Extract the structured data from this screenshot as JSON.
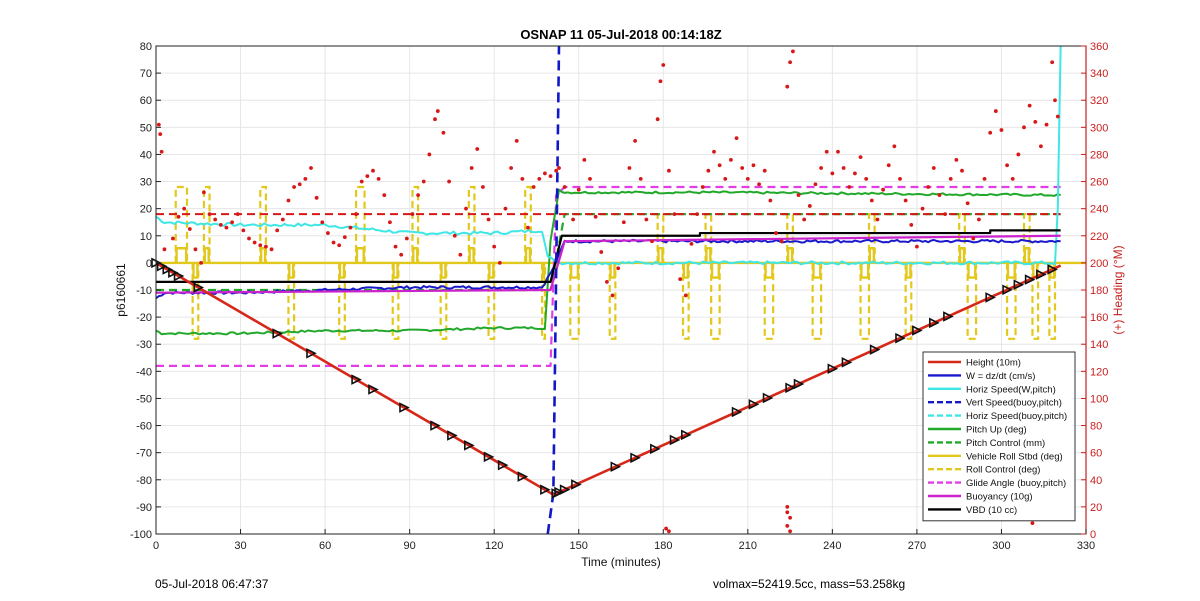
{
  "chart_data": {
    "type": "line",
    "title": "OSNAP 11 05-Jul-2018 00:14:18Z",
    "xlabel": "Time (minutes)",
    "ylabel": "p6160661",
    "y2label": "(+) Heading (°M)",
    "xlim": [
      0,
      330
    ],
    "ylim": [
      -100,
      80
    ],
    "y2lim": [
      0,
      360
    ],
    "x_ticks": [
      "0",
      "30",
      "60",
      "90",
      "120",
      "150",
      "180",
      "210",
      "240",
      "270",
      "300",
      "330"
    ],
    "y_ticks": [
      "80",
      "70",
      "60",
      "50",
      "40",
      "30",
      "20",
      "10",
      "0",
      "-10",
      "-20",
      "-30",
      "-40",
      "-50",
      "-60",
      "-70",
      "-80",
      "-90",
      "-100"
    ],
    "y2_ticks": [
      "360",
      "340",
      "320",
      "300",
      "280",
      "260",
      "240",
      "220",
      "200",
      "180",
      "160",
      "140",
      "120",
      "100",
      "80",
      "60",
      "40",
      "20",
      "0"
    ],
    "grid": true,
    "legend_position": "bottom-right",
    "colors": {
      "height": "#d62718",
      "w": "#1a1acc",
      "horiz_speed": "#3fe6e6",
      "vert_speed": "#1018c8",
      "pitch": "#22a82a",
      "roll": "#e3c81c",
      "glide": "#e23ee6",
      "buoyancy": "#cc22cc",
      "vbd": "#000000",
      "heading": "#d81818",
      "axis_right": "#c81e1e"
    },
    "legend": [
      "Height (10m)",
      "W = dz/dt (cm/s)",
      "Horiz Speed(W,pitch)",
      "Vert Speed(buoy,pitch)",
      "Horiz Speed(buoy,pitch)",
      "Pitch Up (deg)",
      "Pitch Control (mm)",
      "Vehicle Roll Stbd (deg)",
      "Roll Control (deg)",
      "Glide Angle (buoy,pitch)",
      "Buoyancy (10g)",
      "VBD (10 cc)"
    ],
    "series": [
      {
        "name": "Height (10m)",
        "x": [
          0,
          141,
          321
        ],
        "y": [
          0,
          -85.5,
          -1
        ]
      },
      {
        "name": "W = dz/dt (cm/s)",
        "x": [
          0,
          3,
          30,
          60,
          90,
          120,
          137,
          141,
          145,
          170,
          200,
          250,
          300,
          321
        ],
        "y": [
          -13,
          -11,
          -11,
          -10,
          -9,
          -9,
          -9,
          -2,
          8,
          8,
          8,
          8,
          8,
          8
        ]
      },
      {
        "name": "Horiz Speed(W,pitch)",
        "x": [
          0,
          3,
          30,
          60,
          90,
          120,
          137,
          139,
          144,
          200,
          300,
          319,
          320,
          321
        ],
        "y": [
          17,
          15,
          14,
          14,
          11,
          11,
          12,
          2,
          0,
          0,
          0,
          0,
          20,
          80
        ]
      },
      {
        "name": "Vert Speed(buoy,pitch)",
        "x": [
          139,
          141,
          143
        ],
        "y": [
          -100,
          -85,
          80
        ]
      },
      {
        "name": "Horiz Speed(buoy,pitch)",
        "x": [],
        "y": []
      },
      {
        "name": "Pitch Up (deg)",
        "x": [
          0,
          2,
          30,
          60,
          90,
          120,
          138,
          140,
          143,
          145,
          200,
          320,
          321
        ],
        "y": [
          -25,
          -26,
          -26,
          -25,
          -25,
          -24,
          -24,
          8,
          27,
          26,
          26,
          25,
          25
        ]
      },
      {
        "name": "Pitch Control (mm)",
        "x": [
          0,
          140,
          145,
          321
        ],
        "y": [
          -10,
          -10,
          18,
          18
        ]
      },
      {
        "name": "Vehicle Roll Stbd (deg)",
        "x": [
          0,
          330
        ],
        "y": [
          0,
          0
        ]
      },
      {
        "name": "Roll Control (deg)",
        "x": [],
        "y": []
      },
      {
        "name": "Glide Angle (buoy,pitch)",
        "x": [
          0,
          140,
          142,
          145,
          321
        ],
        "y": [
          -38,
          -38,
          25,
          28,
          28
        ]
      },
      {
        "name": "Buoyancy (10g)",
        "x": [
          0,
          140,
          145,
          321
        ],
        "y": [
          -11,
          -10,
          8,
          10
        ]
      },
      {
        "name": "VBD (10 cc)",
        "x": [
          0,
          140,
          145,
          190,
          300,
          321
        ],
        "y": [
          -7,
          -7,
          10,
          11,
          12,
          12
        ]
      }
    ],
    "vbd_steps": [
      [
        0,
        -7
      ],
      [
        140,
        -7
      ],
      [
        144,
        10
      ],
      [
        193,
        10
      ],
      [
        193,
        11
      ],
      [
        296,
        11
      ],
      [
        296,
        12
      ],
      [
        321,
        12
      ]
    ],
    "height_markers_x": [
      0,
      2,
      4,
      6,
      8,
      15,
      43,
      55,
      71,
      77,
      88,
      99,
      105,
      111,
      118,
      123,
      130,
      138,
      142,
      143,
      145,
      149,
      163,
      170,
      177,
      184,
      188,
      206,
      212,
      217,
      225,
      228,
      240,
      245,
      255,
      264,
      270,
      276,
      281,
      296,
      302,
      306,
      310,
      314,
      318
    ],
    "roll_control_spikes": [
      [
        7,
        4,
        28
      ],
      [
        17,
        2,
        28
      ],
      [
        37,
        2,
        28
      ],
      [
        71,
        3,
        28
      ],
      [
        91,
        2,
        28
      ],
      [
        111,
        2,
        28
      ],
      [
        131,
        2,
        28
      ],
      [
        13,
        2,
        -28
      ],
      [
        47,
        2,
        -28
      ],
      [
        65,
        2,
        -28
      ],
      [
        84,
        2,
        -28
      ],
      [
        101,
        2,
        -28
      ],
      [
        118,
        2,
        -28
      ],
      [
        137,
        1,
        -28
      ],
      [
        147,
        3,
        -28
      ],
      [
        161,
        2,
        -28
      ],
      [
        187,
        2,
        -28
      ],
      [
        197,
        3,
        -28
      ],
      [
        216,
        3,
        -28
      ],
      [
        233,
        3,
        -28
      ],
      [
        250,
        3,
        -28
      ],
      [
        266,
        2,
        -28
      ],
      [
        288,
        3,
        -28
      ],
      [
        302,
        3,
        -28
      ],
      [
        311,
        2,
        -28
      ],
      [
        317,
        2,
        -28
      ],
      [
        178,
        2,
        18
      ],
      [
        195,
        2,
        18
      ],
      [
        224,
        2,
        18
      ],
      [
        253,
        2,
        18
      ],
      [
        285,
        2,
        18
      ],
      [
        308,
        2,
        18
      ]
    ],
    "heading_points_y2": [
      [
        1,
        302
      ],
      [
        1.5,
        295
      ],
      [
        2,
        282
      ],
      [
        3,
        210
      ],
      [
        6,
        218
      ],
      [
        8,
        234
      ],
      [
        10,
        240
      ],
      [
        12,
        225
      ],
      [
        14,
        210
      ],
      [
        16,
        200
      ],
      [
        17,
        252
      ],
      [
        19,
        236
      ],
      [
        21,
        232
      ],
      [
        23,
        228
      ],
      [
        25,
        226
      ],
      [
        27,
        230
      ],
      [
        29,
        236
      ],
      [
        31,
        224
      ],
      [
        33,
        218
      ],
      [
        35,
        215
      ],
      [
        37,
        213
      ],
      [
        39,
        212
      ],
      [
        41,
        210
      ],
      [
        43,
        224
      ],
      [
        45,
        232
      ],
      [
        47,
        246
      ],
      [
        49,
        256
      ],
      [
        51,
        258
      ],
      [
        53,
        262
      ],
      [
        55,
        270
      ],
      [
        57,
        248
      ],
      [
        59,
        230
      ],
      [
        61,
        222
      ],
      [
        63,
        215
      ],
      [
        65,
        213
      ],
      [
        67,
        219
      ],
      [
        69,
        226
      ],
      [
        71,
        236
      ],
      [
        73,
        260
      ],
      [
        75,
        264
      ],
      [
        77,
        268
      ],
      [
        79,
        262
      ],
      [
        81,
        250
      ],
      [
        83,
        230
      ],
      [
        85,
        212
      ],
      [
        87,
        206
      ],
      [
        89,
        218
      ],
      [
        91,
        236
      ],
      [
        93,
        250
      ],
      [
        95,
        260
      ],
      [
        97,
        280
      ],
      [
        99,
        306
      ],
      [
        100,
        312
      ],
      [
        102,
        296
      ],
      [
        104,
        260
      ],
      [
        106,
        220
      ],
      [
        108,
        206
      ],
      [
        110,
        240
      ],
      [
        112,
        270
      ],
      [
        114,
        284
      ],
      [
        116,
        256
      ],
      [
        118,
        232
      ],
      [
        120,
        212
      ],
      [
        122,
        200
      ],
      [
        124,
        240
      ],
      [
        126,
        270
      ],
      [
        128,
        290
      ],
      [
        130,
        262
      ],
      [
        132,
        226
      ],
      [
        134,
        256
      ],
      [
        136,
        262
      ],
      [
        138,
        266
      ],
      [
        140,
        264
      ],
      [
        142,
        268
      ],
      [
        143,
        270
      ],
      [
        145,
        256
      ],
      [
        148,
        232
      ],
      [
        150,
        254
      ],
      [
        152,
        276
      ],
      [
        154,
        262
      ],
      [
        156,
        234
      ],
      [
        158,
        208
      ],
      [
        160,
        186
      ],
      [
        162,
        176
      ],
      [
        164,
        196
      ],
      [
        166,
        230
      ],
      [
        168,
        270
      ],
      [
        170,
        290
      ],
      [
        172,
        262
      ],
      [
        174,
        232
      ],
      [
        176,
        216
      ],
      [
        178,
        306
      ],
      [
        179,
        334
      ],
      [
        180,
        346
      ],
      [
        182,
        268
      ],
      [
        184,
        236
      ],
      [
        186,
        188
      ],
      [
        188,
        176
      ],
      [
        190,
        214
      ],
      [
        192,
        236
      ],
      [
        194,
        256
      ],
      [
        196,
        268
      ],
      [
        198,
        282
      ],
      [
        200,
        272
      ],
      [
        202,
        262
      ],
      [
        204,
        276
      ],
      [
        206,
        292
      ],
      [
        208,
        270
      ],
      [
        210,
        262
      ],
      [
        212,
        272
      ],
      [
        214,
        258
      ],
      [
        216,
        268
      ],
      [
        218,
        246
      ],
      [
        220,
        222
      ],
      [
        222,
        216
      ],
      [
        224,
        330
      ],
      [
        225,
        348
      ],
      [
        226,
        356
      ],
      [
        228,
        250
      ],
      [
        230,
        232
      ],
      [
        232,
        242
      ],
      [
        234,
        258
      ],
      [
        236,
        270
      ],
      [
        238,
        282
      ],
      [
        240,
        266
      ],
      [
        242,
        282
      ],
      [
        244,
        270
      ],
      [
        246,
        256
      ],
      [
        248,
        266
      ],
      [
        250,
        278
      ],
      [
        252,
        262
      ],
      [
        254,
        246
      ],
      [
        256,
        232
      ],
      [
        258,
        254
      ],
      [
        260,
        272
      ],
      [
        262,
        286
      ],
      [
        264,
        262
      ],
      [
        266,
        246
      ],
      [
        268,
        228
      ],
      [
        270,
        212
      ],
      [
        272,
        240
      ],
      [
        274,
        256
      ],
      [
        276,
        270
      ],
      [
        278,
        250
      ],
      [
        280,
        236
      ],
      [
        282,
        262
      ],
      [
        284,
        276
      ],
      [
        286,
        268
      ],
      [
        288,
        244
      ],
      [
        290,
        218
      ],
      [
        292,
        232
      ],
      [
        294,
        262
      ],
      [
        296,
        296
      ],
      [
        298,
        312
      ],
      [
        300,
        298
      ],
      [
        302,
        272
      ],
      [
        304,
        262
      ],
      [
        306,
        280
      ],
      [
        308,
        300
      ],
      [
        310,
        316
      ],
      [
        312,
        304
      ],
      [
        314,
        286
      ],
      [
        316,
        302
      ],
      [
        318,
        348
      ],
      [
        319,
        320
      ],
      [
        320,
        308
      ],
      [
        181,
        4
      ],
      [
        182,
        2
      ],
      [
        224,
        16
      ],
      [
        224,
        20
      ],
      [
        225,
        12
      ],
      [
        224,
        6
      ],
      [
        225,
        2
      ],
      [
        311,
        12
      ],
      [
        312,
        16
      ],
      [
        311,
        8
      ]
    ],
    "footer_left": "05-Jul-2018 06:47:37",
    "footer_right": "volmax=52419.5cc, mass=53.258kg"
  }
}
